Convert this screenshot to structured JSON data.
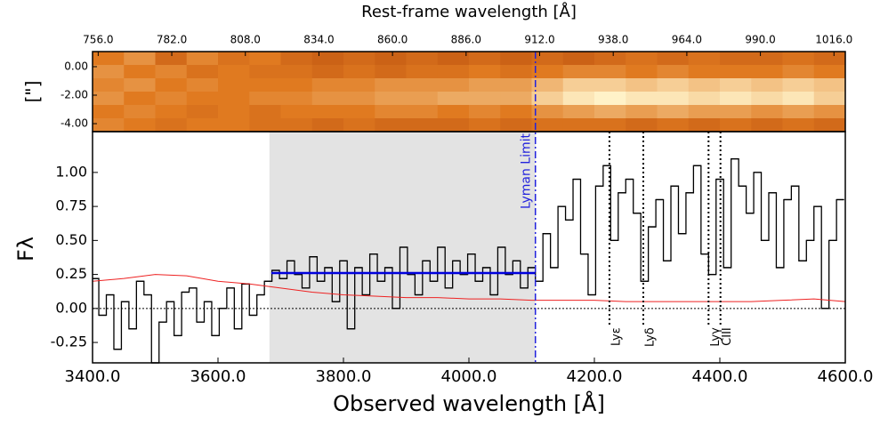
{
  "chart_data": {
    "type": "spectrum",
    "title": "Rest-frame wavelength [Å]",
    "xlabel": "Observed wavelength [Å]",
    "ylabel": "Fλ",
    "image_ylabel": "[\"]",
    "xlim": [
      3400,
      4600
    ],
    "xticks": [
      {
        "value": 3400,
        "label": "3400.0"
      },
      {
        "value": 3600,
        "label": "3600.0"
      },
      {
        "value": 3800,
        "label": "3800.0"
      },
      {
        "value": 4000,
        "label": "4000.0"
      },
      {
        "value": 4200,
        "label": "4200.0"
      },
      {
        "value": 4400,
        "label": "4400.0"
      },
      {
        "value": 4600,
        "label": "4600.0"
      }
    ],
    "ylim": [
      -0.4,
      1.3
    ],
    "yticks": [
      {
        "value": -0.25,
        "label": "-0.25"
      },
      {
        "value": 0,
        "label": "0.00"
      },
      {
        "value": 0.25,
        "label": "0.25"
      },
      {
        "value": 0.5,
        "label": "0.50"
      },
      {
        "value": 0.75,
        "label": "0.75"
      },
      {
        "value": 1,
        "label": "1.00"
      }
    ],
    "x2lim": [
      754,
      1020
    ],
    "x2ticks": [
      {
        "value": 756,
        "label": "756.0"
      },
      {
        "value": 782,
        "label": "782.0"
      },
      {
        "value": 808,
        "label": "808.0"
      },
      {
        "value": 834,
        "label": "834.0"
      },
      {
        "value": 860,
        "label": "860.0"
      },
      {
        "value": 886,
        "label": "886.0"
      },
      {
        "value": 912,
        "label": "912.0"
      },
      {
        "value": 938,
        "label": "938.0"
      },
      {
        "value": 964,
        "label": "964.0"
      },
      {
        "value": 990,
        "label": "990.0"
      },
      {
        "value": 1016,
        "label": "1016.0"
      }
    ],
    "image_ylim": [
      -4.56,
      1.06
    ],
    "image_yticks": [
      {
        "value": 0,
        "label": "0.00"
      },
      {
        "value": -2,
        "label": "-2.00"
      },
      {
        "value": -4,
        "label": "-4.00"
      }
    ],
    "colormap": [
      "#9a2a00",
      "#e07a20",
      "#fff2c8"
    ],
    "image": [
      [
        0.5,
        0.6,
        0.4,
        0.55,
        0.45,
        0.5,
        0.4,
        0.35,
        0.4,
        0.35,
        0.4,
        0.35,
        0.4,
        0.35,
        0.4,
        0.35,
        0.4,
        0.45,
        0.4,
        0.45,
        0.4,
        0.4,
        0.45,
        0.4
      ],
      [
        0.6,
        0.5,
        0.55,
        0.45,
        0.5,
        0.45,
        0.45,
        0.4,
        0.45,
        0.4,
        0.45,
        0.45,
        0.5,
        0.45,
        0.5,
        0.55,
        0.55,
        0.5,
        0.55,
        0.5,
        0.5,
        0.5,
        0.55,
        0.5
      ],
      [
        0.55,
        0.6,
        0.5,
        0.55,
        0.5,
        0.5,
        0.5,
        0.55,
        0.55,
        0.6,
        0.6,
        0.6,
        0.65,
        0.65,
        0.75,
        0.85,
        0.85,
        0.8,
        0.85,
        0.8,
        0.85,
        0.8,
        0.85,
        0.8
      ],
      [
        0.6,
        0.5,
        0.55,
        0.5,
        0.5,
        0.55,
        0.55,
        0.6,
        0.6,
        0.65,
        0.65,
        0.7,
        0.7,
        0.7,
        0.85,
        0.95,
        1,
        0.95,
        0.95,
        0.9,
        0.95,
        0.9,
        0.95,
        0.85
      ],
      [
        0.5,
        0.55,
        0.5,
        0.45,
        0.5,
        0.45,
        0.5,
        0.5,
        0.5,
        0.55,
        0.55,
        0.5,
        0.55,
        0.5,
        0.6,
        0.65,
        0.7,
        0.65,
        0.7,
        0.65,
        0.65,
        0.6,
        0.65,
        0.6
      ],
      [
        0.55,
        0.5,
        0.45,
        0.5,
        0.5,
        0.45,
        0.45,
        0.4,
        0.45,
        0.4,
        0.4,
        0.4,
        0.45,
        0.4,
        0.45,
        0.45,
        0.45,
        0.4,
        0.45,
        0.4,
        0.45,
        0.4,
        0.45,
        0.4
      ]
    ],
    "shaded": [
      3682,
      4106
    ],
    "level": {
      "value": 0.26,
      "x": [
        3685,
        4106
      ],
      "color": "#0000dd"
    },
    "limit": {
      "label": "Lyman Limit",
      "x": 4106,
      "color": "#2222dd"
    },
    "lines": [
      {
        "label": "Lyε",
        "x": 4224
      },
      {
        "label": "Lyδ",
        "x": 4278
      },
      {
        "label": "Lyγ",
        "x": 4382
      },
      {
        "label": "CIII",
        "x": 4401
      }
    ],
    "series": [
      {
        "name": "flux",
        "color": "#000000",
        "step": 12,
        "x": [
          3404,
          3416,
          3428,
          3440,
          3452,
          3464,
          3476,
          3488,
          3500,
          3512,
          3524,
          3536,
          3548,
          3560,
          3572,
          3584,
          3596,
          3608,
          3620,
          3632,
          3644,
          3656,
          3668,
          3680,
          3692,
          3704,
          3716,
          3728,
          3740,
          3752,
          3764,
          3776,
          3788,
          3800,
          3812,
          3824,
          3836,
          3848,
          3860,
          3872,
          3884,
          3896,
          3908,
          3920,
          3932,
          3944,
          3956,
          3968,
          3980,
          3992,
          4004,
          4016,
          4028,
          4040,
          4052,
          4064,
          4076,
          4088,
          4100,
          4112,
          4124,
          4136,
          4148,
          4160,
          4172,
          4184,
          4196,
          4208,
          4220,
          4232,
          4244,
          4256,
          4268,
          4280,
          4292,
          4304,
          4316,
          4328,
          4340,
          4352,
          4364,
          4376,
          4388,
          4400,
          4412,
          4424,
          4436,
          4448,
          4460,
          4472,
          4484,
          4496,
          4508,
          4520,
          4532,
          4544,
          4556,
          4568,
          4580,
          4592
        ],
        "values": [
          0.22,
          -0.05,
          0.1,
          -0.3,
          0.05,
          -0.15,
          0.2,
          0.1,
          -0.4,
          -0.1,
          0.05,
          -0.2,
          0.12,
          0.15,
          -0.1,
          0.05,
          -0.2,
          0,
          0.15,
          -0.15,
          0.18,
          -0.05,
          0.1,
          0.2,
          0.28,
          0.22,
          0.35,
          0.25,
          0.15,
          0.38,
          0.2,
          0.3,
          0.05,
          0.35,
          -0.15,
          0.3,
          0.1,
          0.4,
          0.2,
          0.3,
          0,
          0.45,
          0.25,
          0.1,
          0.35,
          0.2,
          0.45,
          0.15,
          0.35,
          0.25,
          0.4,
          0.2,
          0.3,
          0.1,
          0.45,
          0.25,
          0.35,
          0.15,
          0.3,
          0.2,
          0.55,
          0.3,
          0.75,
          0.65,
          0.95,
          0.4,
          0.1,
          0.9,
          1.05,
          0.5,
          0.85,
          0.95,
          0.7,
          0.2,
          0.6,
          0.8,
          0.35,
          0.9,
          0.55,
          0.85,
          1.05,
          0.4,
          0.25,
          0.95,
          0.3,
          1.1,
          0.9,
          0.7,
          1,
          0.5,
          0.85,
          0.3,
          0.8,
          0.9,
          0.35,
          0.5,
          0.75,
          0,
          0.5,
          0.8
        ]
      },
      {
        "name": "error",
        "color": "#ee2222",
        "x": [
          3400,
          3450,
          3500,
          3550,
          3600,
          3650,
          3700,
          3750,
          3800,
          3850,
          3900,
          3950,
          4000,
          4050,
          4100,
          4150,
          4200,
          4250,
          4300,
          4350,
          4400,
          4450,
          4500,
          4550,
          4600
        ],
        "values": [
          0.2,
          0.22,
          0.25,
          0.24,
          0.2,
          0.18,
          0.15,
          0.12,
          0.1,
          0.09,
          0.08,
          0.08,
          0.07,
          0.07,
          0.06,
          0.06,
          0.06,
          0.05,
          0.05,
          0.05,
          0.05,
          0.05,
          0.06,
          0.07,
          0.05
        ]
      }
    ]
  }
}
